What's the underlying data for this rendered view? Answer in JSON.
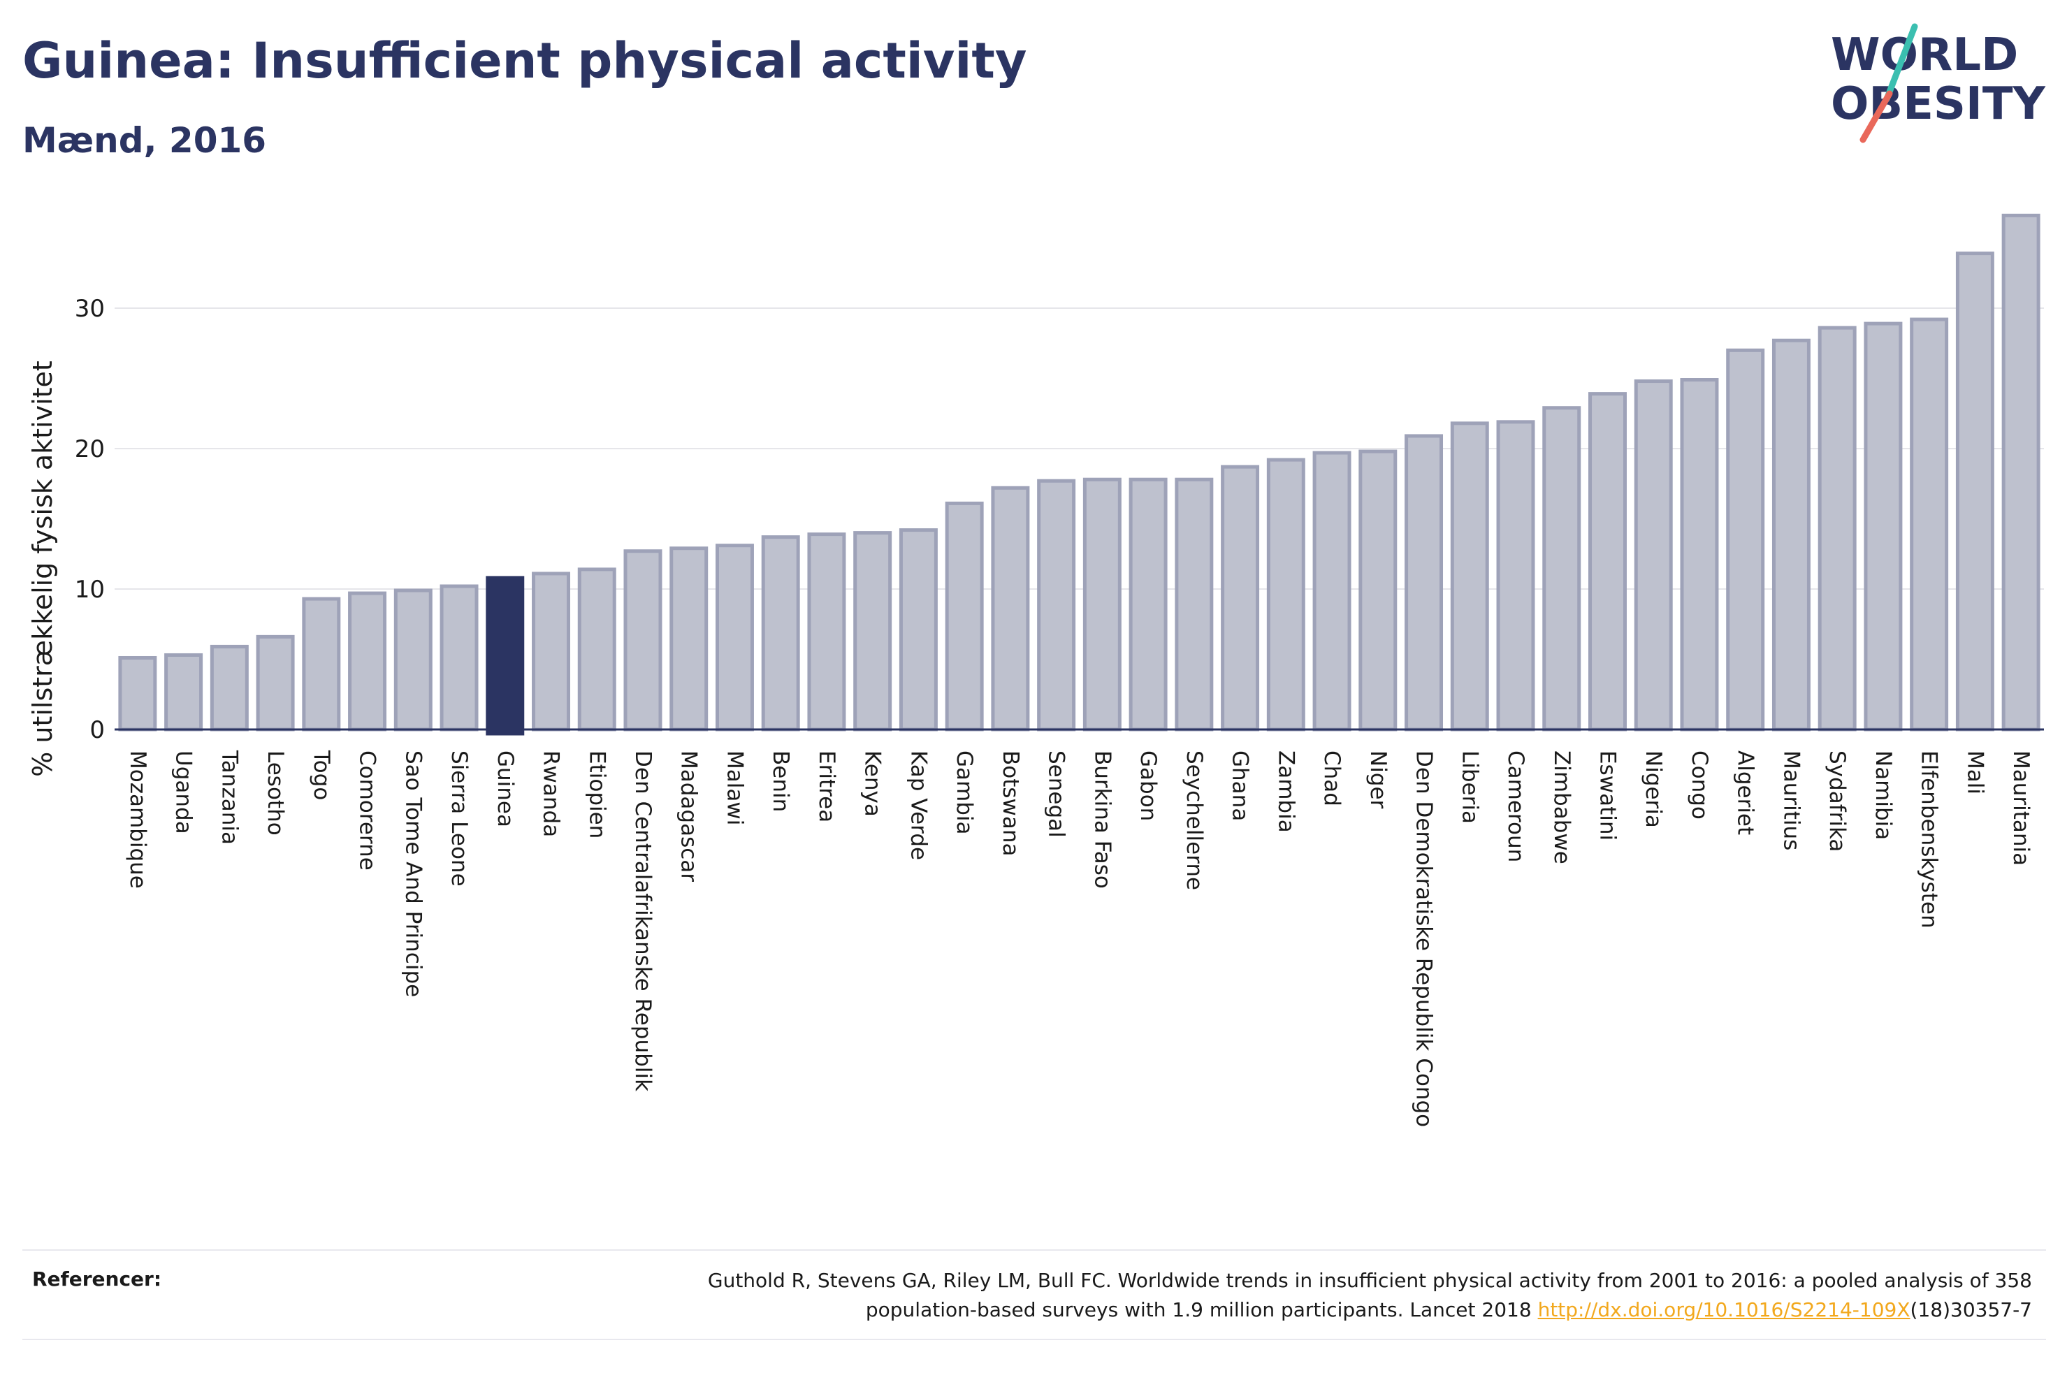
{
  "header": {
    "title": "Guinea: Insufficient physical activity",
    "subtitle": "Mænd, 2016"
  },
  "logo": {
    "line1": "WORLD",
    "line2": "OBESITY",
    "text_color": "#2b3462",
    "slash_colors": [
      "#e9685a",
      "#3bbfb0"
    ]
  },
  "colors": {
    "bar_fill": "#bec1ce",
    "bar_stroke": "#9ea2b8",
    "highlight": "#2b3462",
    "grid": "#e6e6ea",
    "axis": "#2b3462"
  },
  "chart_data": {
    "type": "bar",
    "ylabel": "% utilstrækkelig fysisk aktivitet",
    "xlabel": "",
    "ylim": [
      0,
      37
    ],
    "yticks": [
      0,
      10,
      20,
      30
    ],
    "highlight": "Guinea",
    "categories": [
      "Mozambique",
      "Uganda",
      "Tanzania",
      "Lesotho",
      "Togo",
      "Comorerne",
      "Sao Tome And Principe",
      "Sierra Leone",
      "Guinea",
      "Rwanda",
      "Etiopien",
      "Den Centralafrikanske Republik",
      "Madagascar",
      "Malawi",
      "Benin",
      "Eritrea",
      "Kenya",
      "Kap Verde",
      "Gambia",
      "Botswana",
      "Senegal",
      "Burkina Faso",
      "Gabon",
      "Seychellerne",
      "Ghana",
      "Zambia",
      "Chad",
      "Niger",
      "Den Demokratiske Republik Congo",
      "Liberia",
      "Cameroun",
      "Zimbabwe",
      "Eswatini",
      "Nigeria",
      "Congo",
      "Algeriet",
      "Mauritius",
      "Sydafrika",
      "Namibia",
      "Elfenbenskysten",
      "Mali",
      "Mauritania"
    ],
    "values": [
      5.1,
      5.3,
      5.9,
      6.6,
      9.3,
      9.7,
      9.9,
      10.2,
      10.8,
      11.1,
      11.4,
      12.7,
      12.9,
      13.1,
      13.7,
      13.9,
      14.0,
      14.2,
      16.1,
      17.2,
      17.7,
      17.8,
      17.8,
      17.8,
      18.7,
      19.2,
      19.7,
      19.8,
      20.9,
      21.8,
      21.9,
      22.9,
      23.9,
      24.8,
      24.9,
      27.0,
      27.7,
      28.6,
      28.9,
      29.2,
      33.9,
      36.6
    ]
  },
  "references": {
    "label": "Referencer:",
    "line1": "Guthold R, Stevens GA, Riley LM, Bull FC. Worldwide trends in insufficient physical activity from 2001 to 2016: a pooled analysis of 358",
    "line2_prefix": "population-based surveys with 1.9 million participants. Lancet 2018 ",
    "link_text": "http://dx.doi.org/10.1016/S2214-109X",
    "line2_suffix": "(18)30357-7"
  }
}
